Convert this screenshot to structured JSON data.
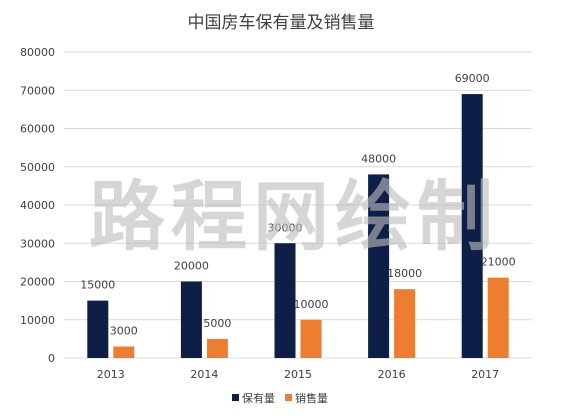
{
  "chart_data": {
    "type": "bar",
    "title": "中国房车保有量及销售量",
    "categories": [
      "2013",
      "2014",
      "2015",
      "2016",
      "2017"
    ],
    "series": [
      {
        "name": "保有量",
        "values": [
          15000,
          20000,
          30000,
          48000,
          69000
        ],
        "color": "#0f1e46"
      },
      {
        "name": "销售量",
        "values": [
          3000,
          5000,
          10000,
          18000,
          21000
        ],
        "color": "#ed7d31"
      }
    ],
    "ylim": [
      0,
      80000
    ],
    "yticks": [
      0,
      10000,
      20000,
      30000,
      40000,
      50000,
      60000,
      70000,
      80000
    ],
    "grid": true,
    "legend": "bottom"
  },
  "watermark": "路程网绘制"
}
